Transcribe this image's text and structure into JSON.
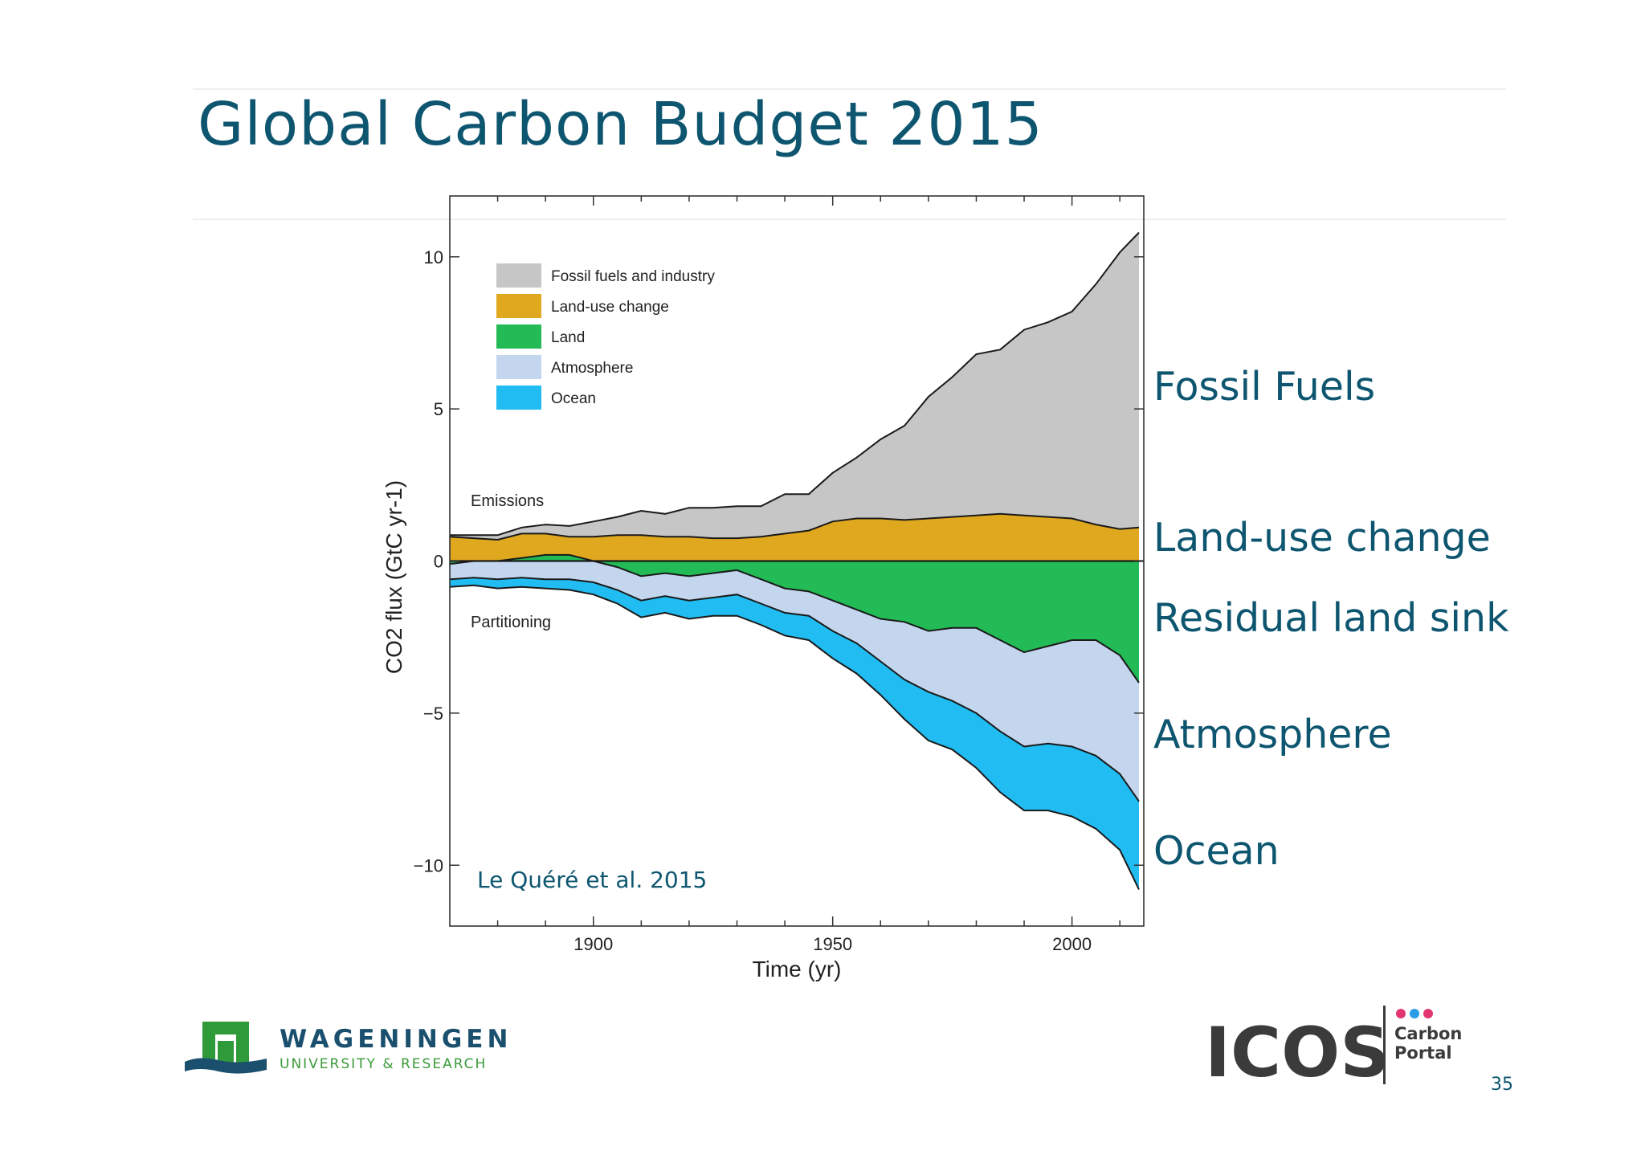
{
  "slide": {
    "title": "Global Carbon Budget 2015",
    "page_number": "35",
    "side_labels": [
      "Fossil Fuels",
      "Land-use change",
      "Residual land sink",
      "Atmosphere",
      "Ocean"
    ],
    "text_color": "#0e5670"
  },
  "chart_data": {
    "type": "area",
    "title": "",
    "xlabel": "Time (yr)",
    "ylabel": "CO2 flux (GtC yr-1)",
    "xlim": [
      1870,
      2015
    ],
    "ylim": [
      -12,
      12
    ],
    "x_ticks": [
      1900,
      1950,
      2000
    ],
    "y_ticks": [
      10,
      5,
      0,
      -5,
      -10
    ],
    "legend_position": "top-left",
    "annotations": {
      "emissions": "Emissions",
      "partitioning": "Partitioning",
      "citation": "Le Quéré et al. 2015"
    },
    "x": [
      1870,
      1875,
      1880,
      1885,
      1890,
      1895,
      1900,
      1905,
      1910,
      1915,
      1920,
      1925,
      1930,
      1935,
      1940,
      1945,
      1950,
      1955,
      1960,
      1965,
      1970,
      1975,
      1980,
      1985,
      1990,
      1995,
      2000,
      2005,
      2010,
      2014
    ],
    "series": [
      {
        "name": "Fossil fuels and industry",
        "color": "#c6c6c6",
        "values": [
          0.05,
          0.1,
          0.15,
          0.2,
          0.3,
          0.35,
          0.5,
          0.6,
          0.8,
          0.75,
          0.95,
          1.0,
          1.05,
          1.0,
          1.3,
          1.2,
          1.6,
          2.0,
          2.6,
          3.1,
          4.0,
          4.6,
          5.3,
          5.4,
          6.1,
          6.4,
          6.8,
          7.9,
          9.1,
          9.7
        ]
      },
      {
        "name": "Land-use change",
        "color": "#e0a81f",
        "values": [
          0.8,
          0.75,
          0.7,
          0.9,
          0.9,
          0.8,
          0.8,
          0.85,
          0.85,
          0.8,
          0.8,
          0.75,
          0.75,
          0.8,
          0.9,
          1.0,
          1.3,
          1.4,
          1.4,
          1.35,
          1.4,
          1.45,
          1.5,
          1.55,
          1.5,
          1.45,
          1.4,
          1.2,
          1.05,
          1.1
        ]
      },
      {
        "name": "Land",
        "color": "#22bb55",
        "values": [
          -0.1,
          0.0,
          0.0,
          0.1,
          0.2,
          0.2,
          0.0,
          -0.2,
          -0.5,
          -0.4,
          -0.5,
          -0.4,
          -0.3,
          -0.6,
          -0.9,
          -1.0,
          -1.3,
          -1.6,
          -1.9,
          -2.0,
          -2.3,
          -2.2,
          -2.2,
          -2.6,
          -3.0,
          -2.8,
          -2.6,
          -2.6,
          -3.1,
          -4.0
        ]
      },
      {
        "name": "Atmosphere",
        "color": "#c3d6ee",
        "values": [
          -0.5,
          -0.55,
          -0.6,
          -0.55,
          -0.6,
          -0.6,
          -0.7,
          -0.75,
          -0.8,
          -0.75,
          -0.8,
          -0.8,
          -0.8,
          -0.8,
          -0.8,
          -0.8,
          -1.0,
          -1.1,
          -1.4,
          -1.9,
          -2.0,
          -2.4,
          -2.8,
          -3.0,
          -3.1,
          -3.2,
          -3.5,
          -3.8,
          -3.9,
          -3.9
        ]
      },
      {
        "name": "Ocean",
        "color": "#20bcf2",
        "values": [
          -0.25,
          -0.25,
          -0.3,
          -0.3,
          -0.3,
          -0.35,
          -0.4,
          -0.45,
          -0.55,
          -0.55,
          -0.6,
          -0.6,
          -0.7,
          -0.7,
          -0.75,
          -0.8,
          -0.9,
          -1.0,
          -1.1,
          -1.3,
          -1.6,
          -1.6,
          -1.8,
          -2.0,
          -2.1,
          -2.2,
          -2.3,
          -2.4,
          -2.5,
          -2.9
        ]
      }
    ]
  }
}
